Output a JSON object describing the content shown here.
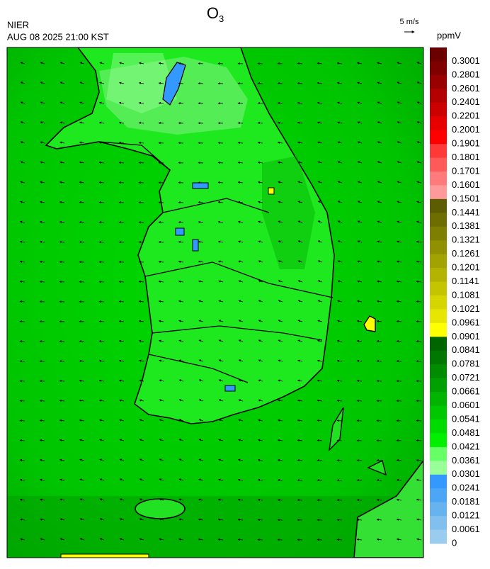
{
  "header": {
    "title": {
      "main": "O",
      "sub": "3"
    },
    "source": "NIER",
    "datetime": "AUG 08 2025 21:00 KST",
    "wind_scale": "5 m/s",
    "unit": "ppmV"
  },
  "colorbar": [
    {
      "label": "0.3001",
      "color": "#6b0000"
    },
    {
      "label": "0.2801",
      "color": "#800000"
    },
    {
      "label": "0.2601",
      "color": "#990000"
    },
    {
      "label": "0.2401",
      "color": "#b30000"
    },
    {
      "label": "0.2201",
      "color": "#cc0000"
    },
    {
      "label": "0.2001",
      "color": "#e60000"
    },
    {
      "label": "0.1901",
      "color": "#ff0000"
    },
    {
      "label": "0.1801",
      "color": "#ff3838"
    },
    {
      "label": "0.1701",
      "color": "#ff5a5a"
    },
    {
      "label": "0.1601",
      "color": "#ff7a7a"
    },
    {
      "label": "0.1501",
      "color": "#ff9a9a"
    },
    {
      "label": "0.1441",
      "color": "#5c5c00"
    },
    {
      "label": "0.1381",
      "color": "#6d6d00"
    },
    {
      "label": "0.1321",
      "color": "#7e7e00"
    },
    {
      "label": "0.1261",
      "color": "#909000"
    },
    {
      "label": "0.1201",
      "color": "#a2a200"
    },
    {
      "label": "0.1141",
      "color": "#b3b300"
    },
    {
      "label": "0.1081",
      "color": "#c4c400"
    },
    {
      "label": "0.1021",
      "color": "#d5d500"
    },
    {
      "label": "0.0961",
      "color": "#e6e600"
    },
    {
      "label": "0.0901",
      "color": "#ffff00"
    },
    {
      "label": "0.0841",
      "color": "#006400"
    },
    {
      "label": "0.0781",
      "color": "#007800"
    },
    {
      "label": "0.0721",
      "color": "#008c00"
    },
    {
      "label": "0.0661",
      "color": "#00a000"
    },
    {
      "label": "0.0601",
      "color": "#00b400"
    },
    {
      "label": "0.0541",
      "color": "#00c800"
    },
    {
      "label": "0.0481",
      "color": "#00dc00"
    },
    {
      "label": "0.0421",
      "color": "#00f000"
    },
    {
      "label": "0.0361",
      "color": "#66ff66"
    },
    {
      "label": "0.0301",
      "color": "#99ff99"
    },
    {
      "label": "0.0241",
      "color": "#3399ff"
    },
    {
      "label": "0.0181",
      "color": "#4da6f5"
    },
    {
      "label": "0.0121",
      "color": "#66b3f0"
    },
    {
      "label": "0.0061",
      "color": "#80bfee"
    },
    {
      "label": "0",
      "color": "#99ccee"
    }
  ]
}
